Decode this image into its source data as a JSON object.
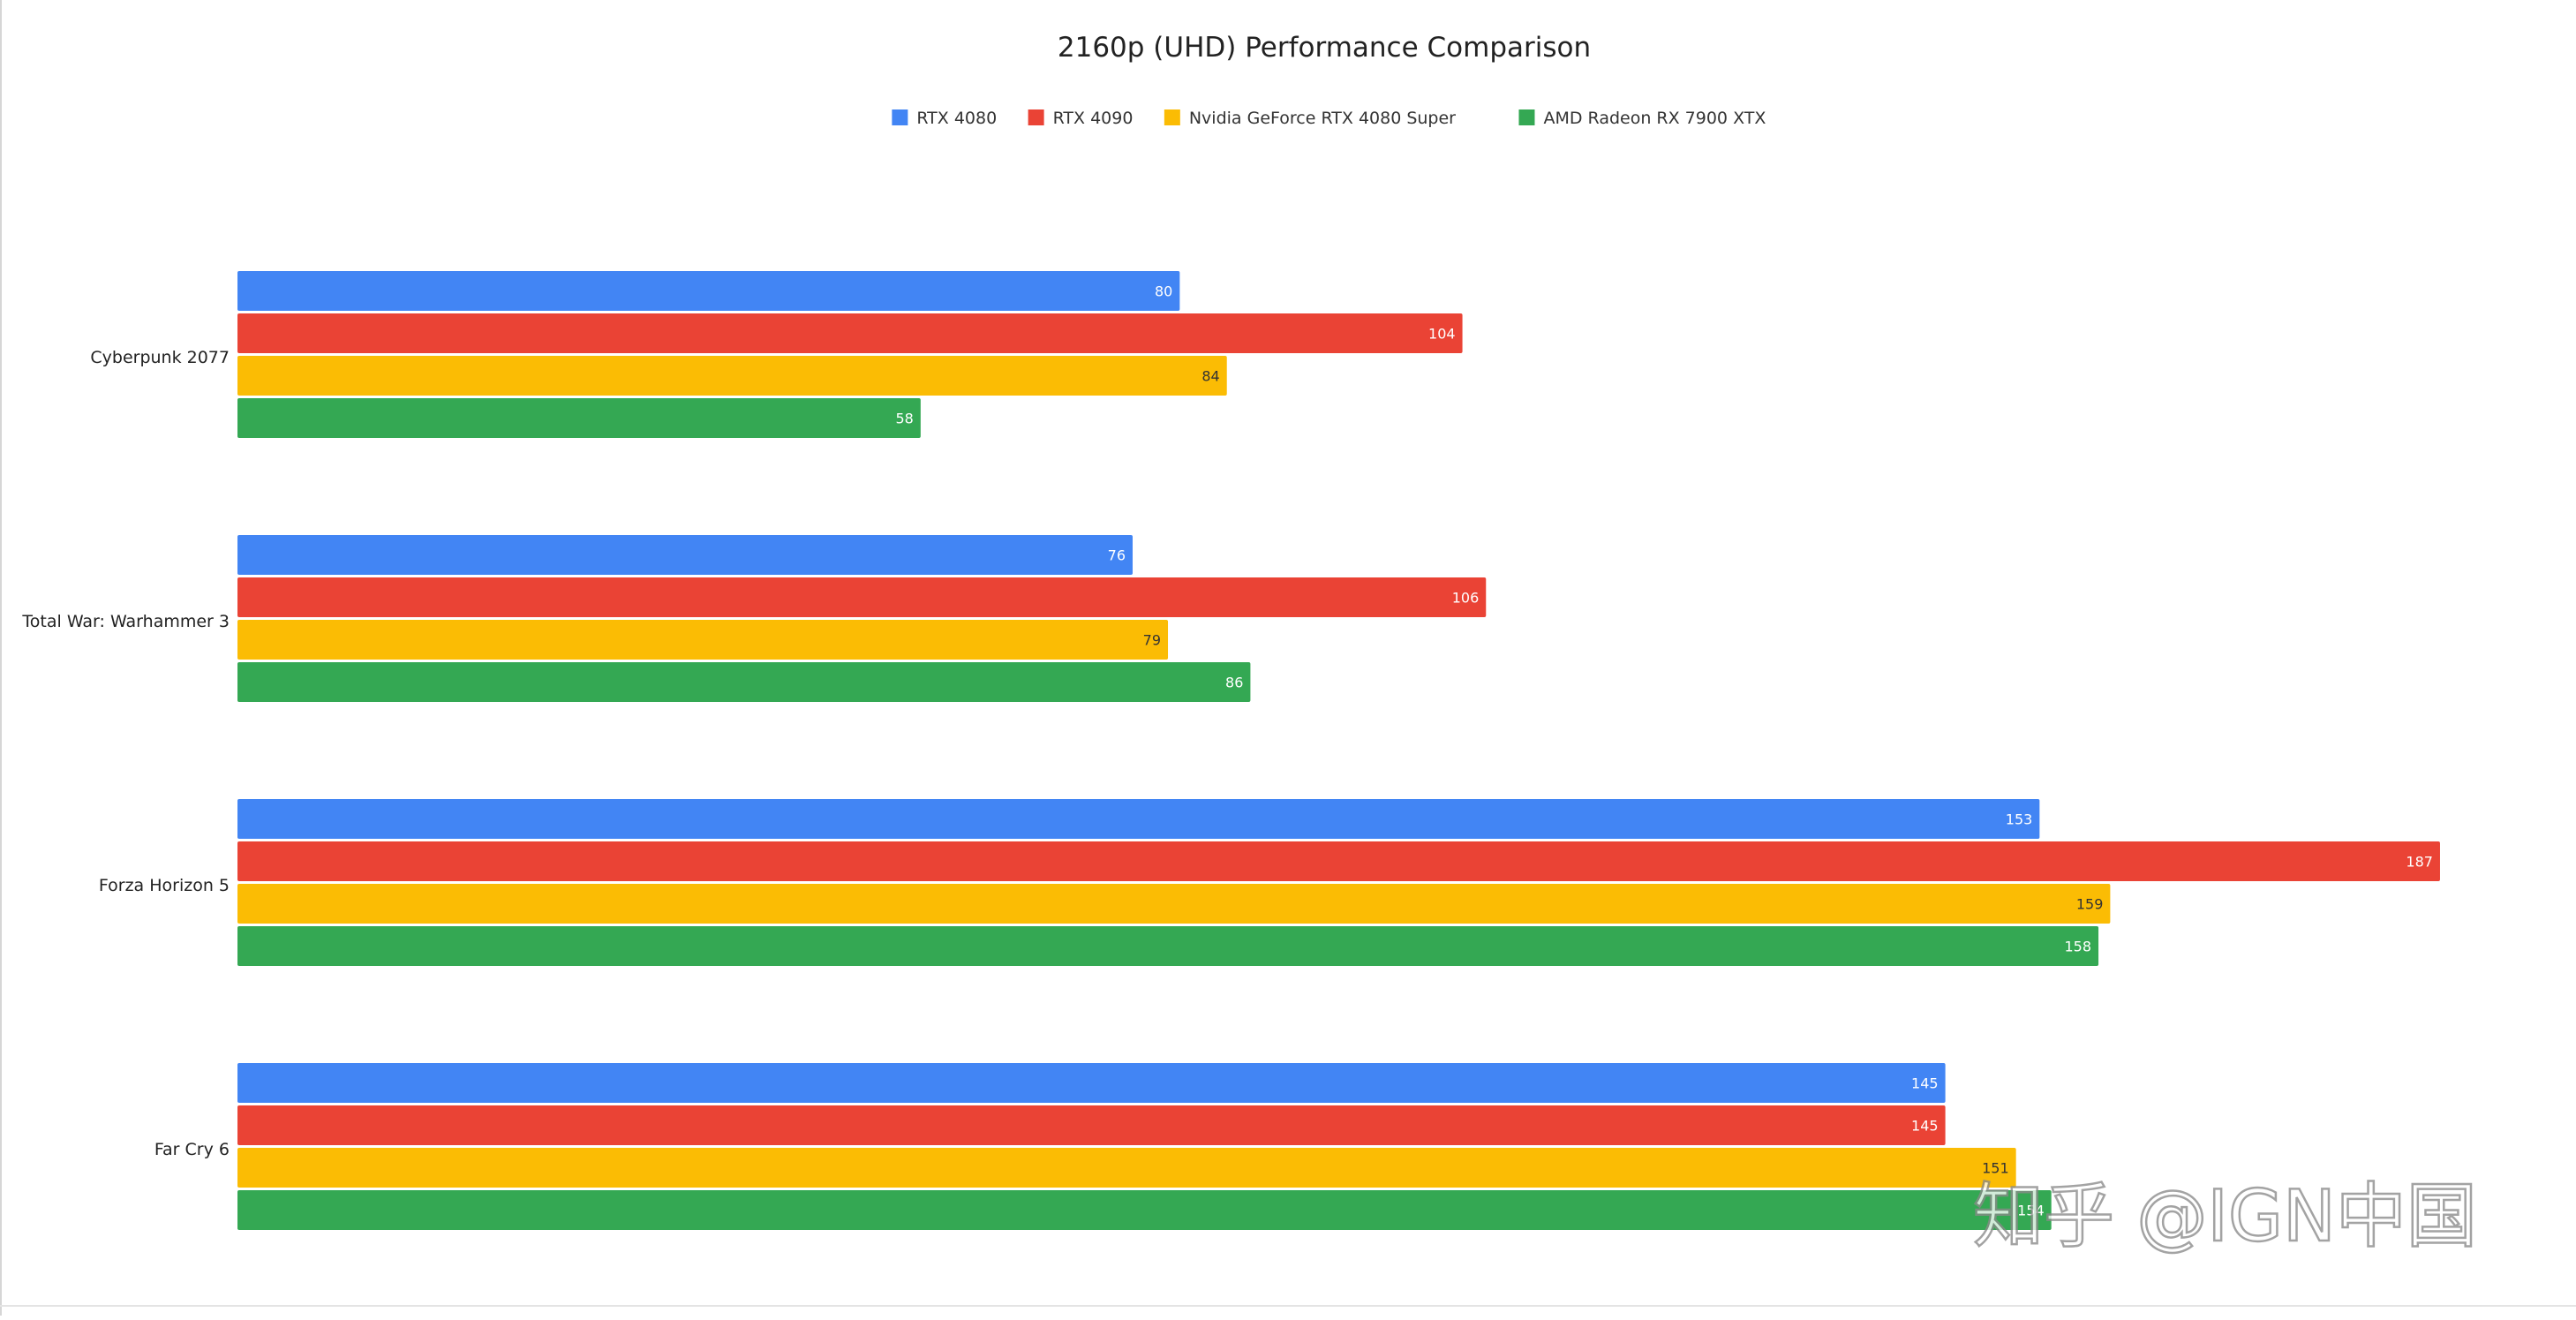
{
  "chart_data": {
    "type": "bar",
    "orientation": "horizontal",
    "title": "2160p (UHD) Performance Comparison",
    "categories": [
      "Cyberpunk 2077",
      "Total War: Warhammer 3",
      "Forza Horizon 5",
      "Far Cry 6"
    ],
    "series": [
      {
        "name": "RTX 4080",
        "color": "#4285f4",
        "label_color": "#ffffff",
        "values": [
          80,
          76,
          153,
          145
        ]
      },
      {
        "name": "RTX 4090",
        "color": "#ea4335",
        "label_color": "#ffffff",
        "values": [
          104,
          106,
          187,
          145
        ]
      },
      {
        "name": "Nvidia GeForce RTX 4080 Super",
        "color": "#fbbc04",
        "label_color": "#333333",
        "values": [
          84,
          79,
          159,
          151
        ]
      },
      {
        "name": "AMD Radeon RX 7900 XTX",
        "color": "#34a853",
        "label_color": "#ffffff",
        "values": [
          58,
          86,
          158,
          154
        ]
      }
    ],
    "xlim": [
      0,
      190
    ],
    "grid": false,
    "legend_position": "top-center",
    "data_labels": true
  },
  "watermark": {
    "text": "知乎 @IGN中国"
  }
}
